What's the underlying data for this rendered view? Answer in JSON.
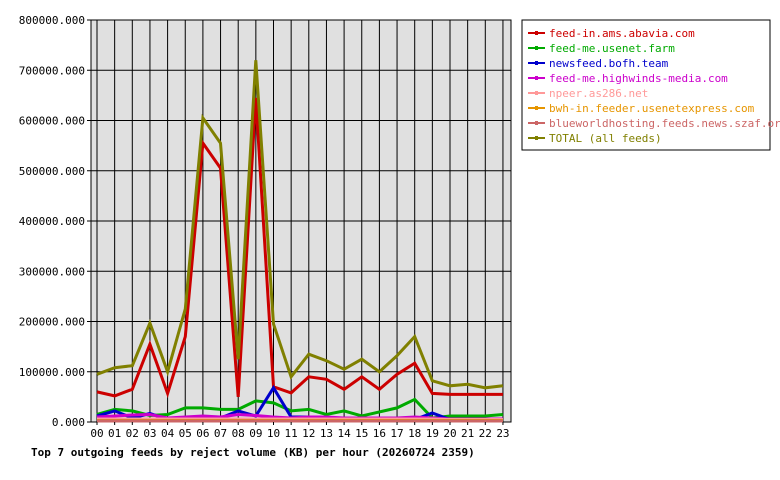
{
  "chart_data": {
    "type": "line",
    "title": "Top 7 outgoing feeds by reject volume (KB) per hour (20260724 2359)",
    "xlabel": "",
    "ylabel": "",
    "categories": [
      "00",
      "01",
      "02",
      "03",
      "04",
      "05",
      "06",
      "07",
      "08",
      "09",
      "10",
      "11",
      "12",
      "13",
      "14",
      "15",
      "16",
      "17",
      "18",
      "19",
      "20",
      "21",
      "22",
      "23"
    ],
    "ylim": [
      0,
      800000
    ],
    "yticks": [
      "0.000",
      "100000.000",
      "200000.000",
      "300000.000",
      "400000.000",
      "500000.000",
      "600000.000",
      "700000.000",
      "800000.000"
    ],
    "ytick_values": [
      0,
      100000,
      200000,
      300000,
      400000,
      500000,
      600000,
      700000,
      800000
    ],
    "grid": true,
    "legend_position": "right",
    "plot_background": "#e0e0e0",
    "series": [
      {
        "name": "feed-in.ams.abavia.com",
        "color": "#cc0000",
        "values": [
          60000,
          52000,
          65000,
          155000,
          57000,
          170000,
          555000,
          505000,
          50000,
          645000,
          70000,
          58000,
          90000,
          85000,
          65000,
          90000,
          65000,
          95000,
          117000,
          57000,
          55000,
          55000,
          55000,
          55000
        ]
      },
      {
        "name": "feed-me.usenet.farm",
        "color": "#00aa00",
        "values": [
          15000,
          25000,
          22000,
          13000,
          15000,
          28000,
          28000,
          25000,
          25000,
          42000,
          38000,
          22000,
          25000,
          15000,
          22000,
          12000,
          20000,
          28000,
          45000,
          8000,
          12000,
          12000,
          12000,
          15000
        ]
      },
      {
        "name": "newsfeed.bofh.team",
        "color": "#0000cc",
        "values": [
          12000,
          22000,
          8000,
          17000,
          5000,
          5000,
          8000,
          8000,
          22000,
          12000,
          68000,
          10000,
          10000,
          8000,
          6000,
          5000,
          5000,
          8000,
          5000,
          18000,
          5000,
          5000,
          5000,
          5000
        ]
      },
      {
        "name": "feed-me.highwinds-media.com",
        "color": "#cc00cc",
        "values": [
          10000,
          12000,
          14000,
          15000,
          8000,
          10000,
          12000,
          10000,
          15000,
          13000,
          10000,
          8000,
          10000,
          10000,
          8000,
          8000,
          8000,
          8000,
          10000,
          8000,
          6000,
          6000,
          6000,
          6000
        ]
      },
      {
        "name": "npeer.as286.net",
        "color": "#ff9999",
        "values": [
          6000,
          6000,
          6000,
          6000,
          6000,
          6000,
          6000,
          6000,
          6000,
          6000,
          6000,
          6000,
          6000,
          6000,
          6000,
          6000,
          6000,
          6000,
          6000,
          6000,
          5000,
          5000,
          5000,
          5000
        ]
      },
      {
        "name": "bwh-in.feeder.usenetexpress.com",
        "color": "#e69500",
        "values": [
          3000,
          3000,
          3000,
          3000,
          3000,
          3000,
          3000,
          3000,
          3000,
          3000,
          3000,
          3000,
          3000,
          3000,
          3000,
          3000,
          3000,
          3000,
          3000,
          3000,
          3000,
          3000,
          3000,
          3000
        ]
      },
      {
        "name": "blueworldhosting.feeds.news.szaf.org",
        "color": "#cc6666",
        "values": [
          2000,
          2000,
          2000,
          2000,
          2000,
          2000,
          2000,
          2000,
          2000,
          2000,
          2000,
          2000,
          2000,
          2000,
          2000,
          2000,
          2000,
          2000,
          2000,
          2000,
          2000,
          2000,
          2000,
          2000
        ]
      },
      {
        "name": "TOTAL (all feeds)",
        "color": "#808000",
        "values": [
          95000,
          108000,
          112000,
          197000,
          100000,
          225000,
          605000,
          555000,
          125000,
          720000,
          195000,
          90000,
          135000,
          122000,
          105000,
          125000,
          100000,
          132000,
          170000,
          82000,
          72000,
          75000,
          68000,
          72000
        ]
      }
    ]
  }
}
